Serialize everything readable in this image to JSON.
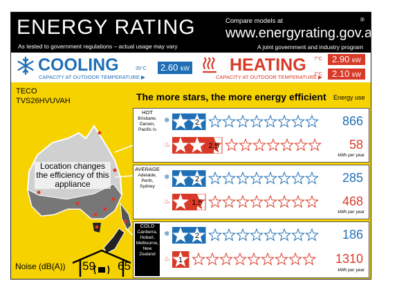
{
  "header": {
    "title": "ENERGY RATING",
    "subtitle": "As tested to government regulations – actual usage may vary",
    "compare": "Compare models at",
    "website": "www.energyrating.gov.au",
    "joint": "A joint government and industry program",
    "registered": "®"
  },
  "cooling": {
    "label": "COOLING",
    "sub": "CAPACITY AT OUTDOOR TEMPERATURE ▶",
    "temp": "35°C",
    "capacity": "2.60",
    "unit": "kW"
  },
  "heating": {
    "label": "HEATING",
    "sub": "CAPACITY AT OUTDOOR TEMPERATURE ▶",
    "temp1": "7°C",
    "capacity1": "2.90",
    "temp2": "2°C",
    "capacity2": "2.10",
    "unit": "kW"
  },
  "product": {
    "brand": "TECO",
    "model": "TVS26HVUVAH"
  },
  "headline": "The more stars, the more energy efficient",
  "energy_use_label": "Energy use",
  "map_text": "Location changes the efficiency of this appliance",
  "kwh_unit": "kWh per year",
  "noise": {
    "label": "Noise (dB(A))",
    "indoor": "59",
    "outdoor": "65"
  },
  "zones": [
    {
      "name": "HOT",
      "places": "Brisbane, Darwin, Pacific Is",
      "cool_rating": "2",
      "cool_value": 2,
      "heat_rating": "2.5",
      "heat_value": 2.5,
      "cool_kwh": "866",
      "heat_kwh": "58"
    },
    {
      "name": "AVERAGE",
      "places": "Adelaide, Perth, Sydney",
      "cool_rating": "2",
      "cool_value": 2,
      "heat_rating": "1.5",
      "heat_value": 1.5,
      "cool_kwh": "285",
      "heat_kwh": "468"
    },
    {
      "name": "COLD",
      "places": "Canberra, Hobart, Melbourne, New Zealand",
      "cool_rating": "2",
      "cool_value": 2,
      "heat_rating": "1",
      "heat_value": 1,
      "cool_kwh": "186",
      "heat_kwh": "1310"
    }
  ],
  "colors": {
    "yellow": "#f6d200",
    "blue": "#1f6fb6",
    "red": "#d93a28",
    "black": "#000000"
  }
}
